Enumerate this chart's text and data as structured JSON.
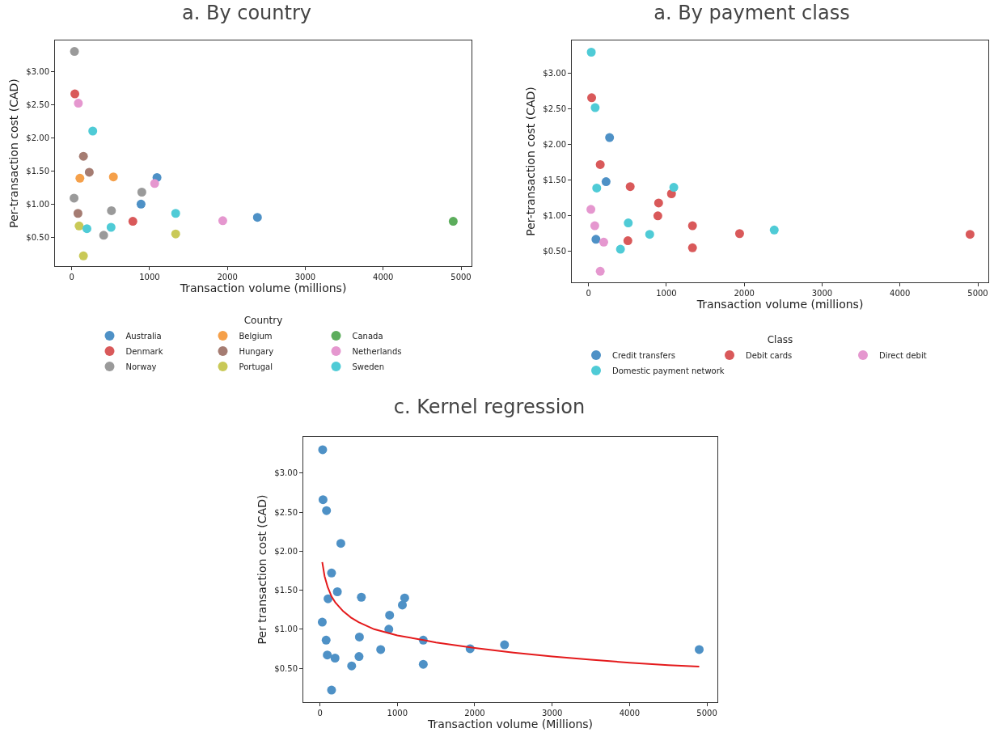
{
  "chart_data": [
    {
      "type": "scatter",
      "title": "a. By country",
      "xlabel": "Transaction volume (millions)",
      "ylabel": "Per-transaction cost (CAD)",
      "legend_title": "Country",
      "legend": "bottom",
      "grid": false,
      "marker": "circle",
      "xlim": [
        -215,
        5135
      ],
      "xticks": [
        0,
        1000,
        2000,
        3000,
        4000,
        5000
      ],
      "ylim": [
        0.065,
        3.465
      ],
      "yticks": [
        {
          "value": 0.5,
          "label": "$0.50"
        },
        {
          "value": 1,
          "label": "$1.00"
        },
        {
          "value": 1.5,
          "label": "$1.50"
        },
        {
          "value": 2,
          "label": "$2.00"
        },
        {
          "value": 2.5,
          "label": "$2.50"
        },
        {
          "value": 3,
          "label": "$3.00"
        }
      ],
      "series": [
        {
          "name": "Australia",
          "color": "#4e91c6",
          "x": [
            1095,
            890,
            2385
          ],
          "values": [
            1.4,
            1.0,
            0.8
          ]
        },
        {
          "name": "Belgium",
          "color": "#f5a04a",
          "x": [
            105,
            535
          ],
          "values": [
            1.39,
            1.41
          ]
        },
        {
          "name": "Canada",
          "color": "#5cad5c",
          "x": [
            4900
          ],
          "values": [
            0.74
          ]
        },
        {
          "name": "Denmark",
          "color": "#d9595a",
          "x": [
            40,
            785
          ],
          "values": [
            2.66,
            0.74
          ]
        },
        {
          "name": "Hungary",
          "color": "#a57c72",
          "x": [
            150,
            225,
            80
          ],
          "values": [
            1.72,
            1.48,
            0.86
          ]
        },
        {
          "name": "Netherlands",
          "color": "#e597cf",
          "x": [
            85,
            1065,
            1940
          ],
          "values": [
            2.52,
            1.31,
            0.75
          ]
        },
        {
          "name": "Norway",
          "color": "#9a9a9a",
          "x": [
            35,
            30,
            900,
            510,
            410
          ],
          "values": [
            3.3,
            1.09,
            1.18,
            0.9,
            0.53
          ]
        },
        {
          "name": "Portugal",
          "color": "#c9c957",
          "x": [
            95,
            150,
            1335
          ],
          "values": [
            0.67,
            0.22,
            0.55
          ]
        },
        {
          "name": "Sweden",
          "color": "#4fcbd6",
          "x": [
            270,
            1335,
            195,
            505
          ],
          "values": [
            2.1,
            0.86,
            0.63,
            0.65
          ]
        }
      ]
    },
    {
      "type": "scatter",
      "title": "a. By payment class",
      "xlabel": "Transaction volume (millions)",
      "ylabel": "Per-transaction cost (CAD)",
      "legend_title": "Class",
      "legend": "bottom",
      "grid": false,
      "marker": "circle",
      "xlim": [
        -215,
        5135
      ],
      "xticks": [
        0,
        1000,
        2000,
        3000,
        4000,
        5000
      ],
      "ylim": [
        0.065,
        3.465
      ],
      "yticks": [
        {
          "value": 0.5,
          "label": "$0.50"
        },
        {
          "value": 1,
          "label": "$1.00"
        },
        {
          "value": 1.5,
          "label": "$1.50"
        },
        {
          "value": 2,
          "label": "$2.00"
        },
        {
          "value": 2.5,
          "label": "$2.50"
        },
        {
          "value": 3,
          "label": "$3.00"
        }
      ],
      "series": [
        {
          "name": "Credit transfers",
          "color": "#4e91c6",
          "x": [
            270,
            225,
            95
          ],
          "values": [
            2.1,
            1.48,
            0.67
          ]
        },
        {
          "name": "Debit cards",
          "color": "#d9595a",
          "x": [
            40,
            150,
            535,
            1065,
            900,
            890,
            1335,
            1335,
            505,
            1940,
            4900
          ],
          "values": [
            2.66,
            1.72,
            1.41,
            1.31,
            1.18,
            1.0,
            0.86,
            0.55,
            0.65,
            0.75,
            0.74
          ]
        },
        {
          "name": "Direct debit",
          "color": "#e597cf",
          "x": [
            30,
            80,
            195,
            150
          ],
          "values": [
            1.09,
            0.86,
            0.63,
            0.22
          ]
        },
        {
          "name": "Domestic payment network",
          "color": "#4fcbd6",
          "x": [
            35,
            85,
            105,
            510,
            785,
            410,
            1095,
            2385
          ],
          "values": [
            3.3,
            2.52,
            1.39,
            0.9,
            0.74,
            0.53,
            1.4,
            0.8
          ]
        }
      ]
    },
    {
      "type": "scatter",
      "title": "c. Kernel regression",
      "xlabel": "Transaction volume (Millions)",
      "ylabel": "Per transaction cost (CAD)",
      "grid": false,
      "marker": "circle",
      "xlim": [
        -215,
        5135
      ],
      "xticks": [
        0,
        1000,
        2000,
        3000,
        4000,
        5000
      ],
      "ylim": [
        0.065,
        3.465
      ],
      "yticks": [
        {
          "value": 0.5,
          "label": "$0.50"
        },
        {
          "value": 1,
          "label": "$1.00"
        },
        {
          "value": 1.5,
          "label": "$1.50"
        },
        {
          "value": 2,
          "label": "$2.00"
        },
        {
          "value": 2.5,
          "label": "$2.50"
        },
        {
          "value": 3,
          "label": "$3.00"
        }
      ],
      "series": [
        {
          "color": "#4e91c6",
          "x": [
            1095,
            890,
            2385,
            105,
            535,
            4900,
            40,
            785,
            150,
            225,
            80,
            85,
            1065,
            1940,
            35,
            30,
            900,
            510,
            410,
            95,
            150,
            1335,
            270,
            1335,
            195,
            505
          ],
          "values": [
            1.4,
            1.0,
            0.8,
            1.39,
            1.41,
            0.74,
            2.66,
            0.74,
            1.72,
            1.48,
            0.86,
            2.52,
            1.31,
            0.75,
            3.3,
            1.09,
            1.18,
            0.9,
            0.53,
            0.67,
            0.22,
            0.55,
            2.1,
            0.86,
            0.63,
            0.65
          ]
        },
        {
          "type": "line",
          "color": "#e41a1c",
          "marker": "none",
          "line_style": "solid",
          "x": [
            30,
            60,
            100,
            150,
            200,
            300,
            400,
            500,
            700,
            1000,
            1340,
            1500,
            2000,
            2500,
            3000,
            3500,
            4000,
            4500,
            4900
          ],
          "values": [
            1.86,
            1.68,
            1.54,
            1.42,
            1.34,
            1.23,
            1.15,
            1.09,
            1.0,
            0.92,
            0.86,
            0.83,
            0.76,
            0.7,
            0.65,
            0.61,
            0.57,
            0.54,
            0.52
          ]
        }
      ]
    }
  ]
}
